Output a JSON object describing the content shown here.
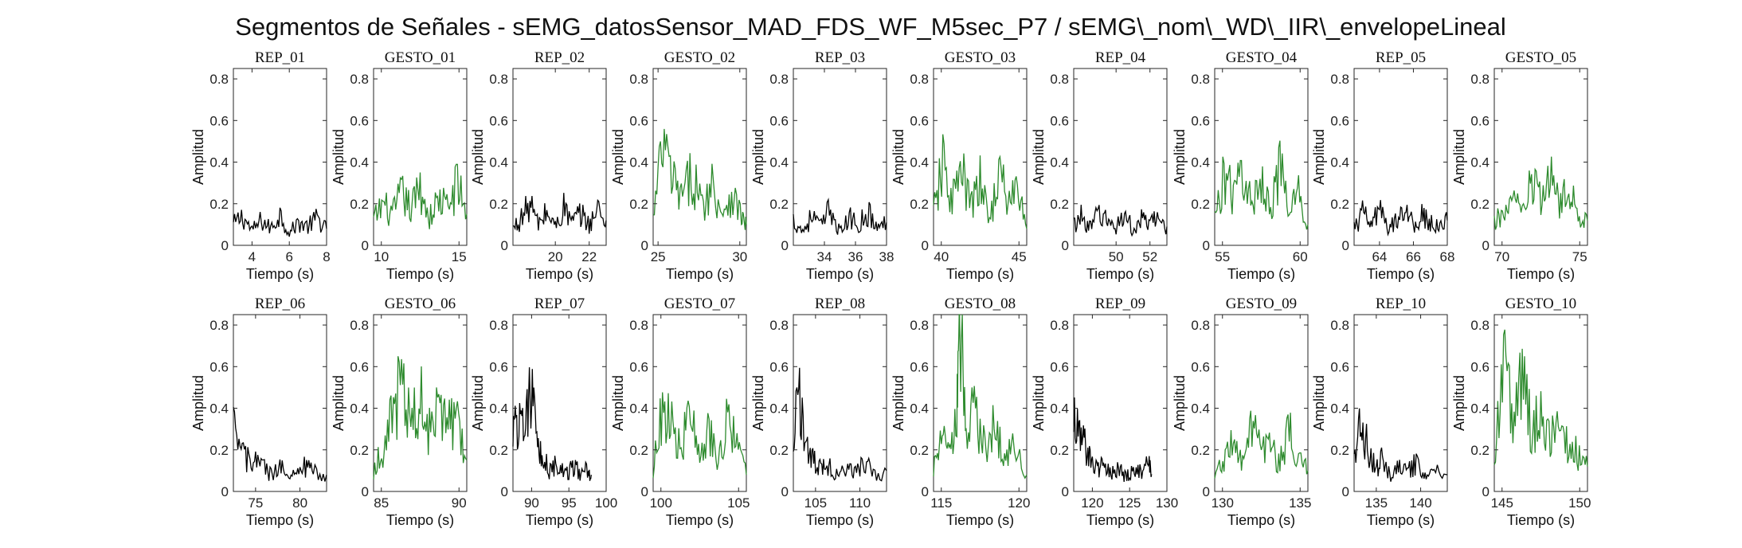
{
  "figure": {
    "title": "Segmentos de Señales - sEMG_datosSensor_MAD_FDS_WF_M5sec_P7 / sEMG\\_nom\\_WD\\_IIR\\_envelopeLineal"
  },
  "colors": {
    "rep": "#000000",
    "gesto": "#2e8b2e",
    "axis": "#262626"
  },
  "chart_data": [
    {
      "type": "line",
      "title": "REP_01",
      "xlabel": "Tiempo (s)",
      "ylabel": "Amplitud",
      "xlim": [
        3,
        8
      ],
      "ylim": [
        0,
        0.85
      ],
      "xticks": [
        4,
        6,
        8
      ],
      "yticks": [
        0,
        0.2,
        0.4,
        0.6,
        0.8
      ],
      "series": [
        {
          "color": "#000000",
          "x": [
            3,
            3.5,
            4,
            4.5,
            5,
            5.5,
            6,
            6.5,
            7,
            7.5,
            8
          ],
          "y": [
            0.1,
            0.14,
            0.07,
            0.12,
            0.08,
            0.15,
            0.06,
            0.11,
            0.09,
            0.13,
            0.08
          ]
        }
      ]
    },
    {
      "type": "line",
      "title": "GESTO_01",
      "xlabel": "Tiempo (s)",
      "ylabel": "Amplitud",
      "xlim": [
        9.5,
        15.5
      ],
      "ylim": [
        0,
        0.85
      ],
      "xticks": [
        10,
        15
      ],
      "yticks": [
        0,
        0.2,
        0.4,
        0.6,
        0.8
      ],
      "series": [
        {
          "color": "#2e8b2e",
          "x": [
            9.5,
            10.1,
            10.7,
            11.3,
            11.9,
            12.5,
            13.1,
            13.7,
            14.3,
            14.9,
            15.5
          ],
          "y": [
            0.12,
            0.2,
            0.14,
            0.25,
            0.17,
            0.28,
            0.13,
            0.22,
            0.18,
            0.3,
            0.15
          ]
        }
      ]
    },
    {
      "type": "line",
      "title": "REP_02",
      "xlabel": "Tiempo (s)",
      "ylabel": "Amplitud",
      "xlim": [
        17.5,
        23
      ],
      "ylim": [
        0,
        0.85
      ],
      "xticks": [
        20,
        22
      ],
      "yticks": [
        0,
        0.2,
        0.4,
        0.6,
        0.8
      ],
      "series": [
        {
          "color": "#000000",
          "x": [
            17.5,
            18,
            18.5,
            19,
            19.5,
            20,
            20.5,
            21,
            21.5,
            22,
            22.5,
            23
          ],
          "y": [
            0.08,
            0.13,
            0.2,
            0.1,
            0.16,
            0.09,
            0.18,
            0.11,
            0.15,
            0.1,
            0.17,
            0.12
          ]
        }
      ]
    },
    {
      "type": "line",
      "title": "GESTO_02",
      "xlabel": "Tiempo (s)",
      "ylabel": "Amplitud",
      "xlim": [
        24.7,
        30.4
      ],
      "ylim": [
        0,
        0.85
      ],
      "xticks": [
        25,
        30
      ],
      "yticks": [
        0,
        0.2,
        0.4,
        0.6,
        0.8
      ],
      "series": [
        {
          "color": "#2e8b2e",
          "x": [
            24.7,
            25.3,
            25.9,
            26.5,
            27.1,
            27.7,
            28.3,
            28.9,
            29.5,
            30.1,
            30.4
          ],
          "y": [
            0.12,
            0.48,
            0.3,
            0.22,
            0.35,
            0.18,
            0.3,
            0.16,
            0.25,
            0.14,
            0.1
          ]
        }
      ]
    },
    {
      "type": "line",
      "title": "REP_03",
      "xlabel": "Tiempo (s)",
      "ylabel": "Amplitud",
      "xlim": [
        32,
        38
      ],
      "ylim": [
        0,
        0.85
      ],
      "xticks": [
        34,
        36,
        38
      ],
      "yticks": [
        0,
        0.2,
        0.4,
        0.6,
        0.8
      ],
      "series": [
        {
          "color": "#000000",
          "x": [
            32,
            32.6,
            33.2,
            33.8,
            34.4,
            35,
            35.6,
            36.2,
            36.8,
            37.4,
            38
          ],
          "y": [
            0.12,
            0.07,
            0.14,
            0.09,
            0.18,
            0.06,
            0.13,
            0.1,
            0.16,
            0.08,
            0.11
          ]
        }
      ]
    },
    {
      "type": "line",
      "title": "GESTO_03",
      "xlabel": "Tiempo (s)",
      "ylabel": "Amplitud",
      "xlim": [
        39.5,
        45.5
      ],
      "ylim": [
        0,
        0.85
      ],
      "xticks": [
        40,
        45
      ],
      "yticks": [
        0,
        0.2,
        0.4,
        0.6,
        0.8
      ],
      "series": [
        {
          "color": "#2e8b2e",
          "x": [
            39.5,
            40.1,
            40.7,
            41.3,
            41.9,
            42.5,
            43.1,
            43.7,
            44.3,
            44.9,
            45.5
          ],
          "y": [
            0.15,
            0.38,
            0.22,
            0.35,
            0.18,
            0.3,
            0.12,
            0.35,
            0.2,
            0.28,
            0.08
          ]
        }
      ]
    },
    {
      "type": "line",
      "title": "REP_04",
      "xlabel": "Tiempo (s)",
      "ylabel": "Amplitud",
      "xlim": [
        47.5,
        53
      ],
      "ylim": [
        0,
        0.85
      ],
      "xticks": [
        50,
        52
      ],
      "yticks": [
        0,
        0.2,
        0.4,
        0.6,
        0.8
      ],
      "series": [
        {
          "color": "#000000",
          "x": [
            47.5,
            48,
            48.5,
            49,
            49.5,
            50,
            50.5,
            51,
            51.5,
            52,
            52.5,
            53
          ],
          "y": [
            0.1,
            0.14,
            0.08,
            0.16,
            0.11,
            0.09,
            0.15,
            0.07,
            0.12,
            0.1,
            0.13,
            0.09
          ]
        }
      ]
    },
    {
      "type": "line",
      "title": "GESTO_04",
      "xlabel": "Tiempo (s)",
      "ylabel": "Amplitud",
      "xlim": [
        54.5,
        60.5
      ],
      "ylim": [
        0,
        0.85
      ],
      "xticks": [
        55,
        60
      ],
      "yticks": [
        0,
        0.2,
        0.4,
        0.6,
        0.8
      ],
      "series": [
        {
          "color": "#2e8b2e",
          "x": [
            54.5,
            55.1,
            55.7,
            56.3,
            56.9,
            57.5,
            58.1,
            58.7,
            59.3,
            59.9,
            60.5
          ],
          "y": [
            0.12,
            0.35,
            0.22,
            0.38,
            0.17,
            0.32,
            0.2,
            0.36,
            0.15,
            0.25,
            0.1
          ]
        }
      ]
    },
    {
      "type": "line",
      "title": "REP_05",
      "xlabel": "Tiempo (s)",
      "ylabel": "Amplitud",
      "xlim": [
        62.5,
        68
      ],
      "ylim": [
        0,
        0.85
      ],
      "xticks": [
        64,
        66,
        68
      ],
      "yticks": [
        0,
        0.2,
        0.4,
        0.6,
        0.8
      ],
      "series": [
        {
          "color": "#000000",
          "x": [
            62.5,
            63,
            63.5,
            64,
            64.5,
            65,
            65.5,
            66,
            66.5,
            67,
            67.5,
            68
          ],
          "y": [
            0.08,
            0.15,
            0.1,
            0.17,
            0.07,
            0.13,
            0.19,
            0.09,
            0.14,
            0.11,
            0.08,
            0.12
          ]
        }
      ]
    },
    {
      "type": "line",
      "title": "GESTO_05",
      "xlabel": "Tiempo (s)",
      "ylabel": "Amplitud",
      "xlim": [
        69.5,
        75.5
      ],
      "ylim": [
        0,
        0.85
      ],
      "xticks": [
        70,
        75
      ],
      "yticks": [
        0,
        0.2,
        0.4,
        0.6,
        0.8
      ],
      "series": [
        {
          "color": "#2e8b2e",
          "x": [
            69.5,
            70.1,
            70.7,
            71.3,
            71.9,
            72.5,
            73.1,
            73.7,
            74.3,
            74.9,
            75.5
          ],
          "y": [
            0.1,
            0.16,
            0.22,
            0.14,
            0.3,
            0.2,
            0.38,
            0.18,
            0.26,
            0.15,
            0.12
          ]
        }
      ]
    },
    {
      "type": "line",
      "title": "REP_06",
      "xlabel": "Tiempo (s)",
      "ylabel": "Amplitud",
      "xlim": [
        72.5,
        83
      ],
      "ylim": [
        0,
        0.85
      ],
      "xticks": [
        75,
        80
      ],
      "yticks": [
        0,
        0.2,
        0.4,
        0.6,
        0.8
      ],
      "series": [
        {
          "color": "#000000",
          "x": [
            72.5,
            73.5,
            74.5,
            75.5,
            76.5,
            77.5,
            78.5,
            79.5,
            80.5,
            81.5,
            83
          ],
          "y": [
            0.28,
            0.2,
            0.12,
            0.15,
            0.08,
            0.1,
            0.13,
            0.07,
            0.12,
            0.09,
            0.08
          ]
        }
      ]
    },
    {
      "type": "line",
      "title": "GESTO_06",
      "xlabel": "Tiempo (s)",
      "ylabel": "Amplitud",
      "xlim": [
        84.5,
        90.5
      ],
      "ylim": [
        0,
        0.85
      ],
      "xticks": [
        85,
        90
      ],
      "yticks": [
        0,
        0.2,
        0.4,
        0.6,
        0.8
      ],
      "series": [
        {
          "color": "#2e8b2e",
          "x": [
            84.5,
            85.1,
            85.7,
            86.3,
            86.9,
            87.5,
            88.1,
            88.7,
            89.3,
            89.9,
            90.5
          ],
          "y": [
            0.1,
            0.2,
            0.35,
            0.55,
            0.3,
            0.45,
            0.28,
            0.5,
            0.32,
            0.4,
            0.15
          ]
        }
      ]
    },
    {
      "type": "line",
      "title": "REP_07",
      "xlabel": "Tiempo (s)",
      "ylabel": "Amplitud",
      "xlim": [
        87.5,
        100
      ],
      "ylim": [
        0,
        0.85
      ],
      "xticks": [
        90,
        95,
        100
      ],
      "yticks": [
        0,
        0.2,
        0.4,
        0.6,
        0.8
      ],
      "series": [
        {
          "color": "#000000",
          "x": [
            87.5,
            88.3,
            89.1,
            89.9,
            90.7,
            91.5,
            92.5,
            93.5,
            94.5,
            95.5,
            96.5,
            97.5,
            98
          ],
          "y": [
            0.35,
            0.3,
            0.4,
            0.5,
            0.2,
            0.15,
            0.1,
            0.14,
            0.08,
            0.12,
            0.09,
            0.11,
            0.08
          ]
        }
      ]
    },
    {
      "type": "line",
      "title": "GESTO_07",
      "xlabel": "Tiempo (s)",
      "ylabel": "Amplitud",
      "xlim": [
        99.5,
        105.5
      ],
      "ylim": [
        0,
        0.85
      ],
      "xticks": [
        100,
        105
      ],
      "yticks": [
        0,
        0.2,
        0.4,
        0.6,
        0.8
      ],
      "series": [
        {
          "color": "#2e8b2e",
          "x": [
            99.5,
            100.1,
            100.7,
            101.3,
            101.9,
            102.5,
            103.1,
            103.7,
            104.3,
            104.9,
            105.5
          ],
          "y": [
            0.1,
            0.4,
            0.3,
            0.22,
            0.35,
            0.15,
            0.28,
            0.12,
            0.42,
            0.2,
            0.08
          ]
        }
      ]
    },
    {
      "type": "line",
      "title": "REP_08",
      "xlabel": "Tiempo (s)",
      "ylabel": "Amplitud",
      "xlim": [
        102.5,
        113
      ],
      "ylim": [
        0,
        0.85
      ],
      "xticks": [
        105,
        110
      ],
      "yticks": [
        0,
        0.2,
        0.4,
        0.6,
        0.8
      ],
      "series": [
        {
          "color": "#000000",
          "x": [
            102.5,
            103.3,
            104.1,
            104.9,
            105.7,
            106.5,
            107.5,
            108.5,
            109.5,
            110.5,
            111.5,
            113
          ],
          "y": [
            0.28,
            0.45,
            0.2,
            0.15,
            0.1,
            0.13,
            0.07,
            0.12,
            0.09,
            0.14,
            0.08,
            0.1
          ]
        }
      ]
    },
    {
      "type": "line",
      "title": "GESTO_08",
      "xlabel": "Tiempo (s)",
      "ylabel": "Amplitud",
      "xlim": [
        114.5,
        120.5
      ],
      "ylim": [
        0,
        0.85
      ],
      "xticks": [
        115,
        120
      ],
      "yticks": [
        0,
        0.2,
        0.4,
        0.6,
        0.8
      ],
      "series": [
        {
          "color": "#2e8b2e",
          "x": [
            114.5,
            115,
            115.5,
            116,
            116.2,
            116.6,
            117.2,
            117.8,
            118.4,
            119,
            119.6,
            120.5
          ],
          "y": [
            0.1,
            0.25,
            0.18,
            0.35,
            0.85,
            0.3,
            0.38,
            0.2,
            0.34,
            0.15,
            0.22,
            0.08
          ]
        }
      ]
    },
    {
      "type": "line",
      "title": "REP_09",
      "xlabel": "Tiempo (s)",
      "ylabel": "Amplitud",
      "xlim": [
        117.5,
        130
      ],
      "ylim": [
        0,
        0.85
      ],
      "xticks": [
        120,
        125,
        130
      ],
      "yticks": [
        0,
        0.2,
        0.4,
        0.6,
        0.8
      ],
      "series": [
        {
          "color": "#000000",
          "x": [
            117.5,
            118.3,
            119.1,
            119.9,
            120.7,
            121.5,
            122.5,
            123.5,
            124.5,
            125.5,
            126.5,
            127.5,
            128
          ],
          "y": [
            0.38,
            0.28,
            0.2,
            0.14,
            0.1,
            0.13,
            0.08,
            0.11,
            0.07,
            0.12,
            0.09,
            0.13,
            0.08
          ]
        }
      ]
    },
    {
      "type": "line",
      "title": "GESTO_09",
      "xlabel": "Tiempo (s)",
      "ylabel": "Amplitud",
      "xlim": [
        129.5,
        135.5
      ],
      "ylim": [
        0,
        0.85
      ],
      "xticks": [
        130,
        135
      ],
      "yticks": [
        0,
        0.2,
        0.4,
        0.6,
        0.8
      ],
      "series": [
        {
          "color": "#2e8b2e",
          "x": [
            129.5,
            130.1,
            130.7,
            131.3,
            131.9,
            132.5,
            133.1,
            133.7,
            134.3,
            134.9,
            135.5
          ],
          "y": [
            0.08,
            0.15,
            0.25,
            0.12,
            0.3,
            0.18,
            0.22,
            0.14,
            0.28,
            0.16,
            0.1
          ]
        }
      ]
    },
    {
      "type": "line",
      "title": "REP_10",
      "xlabel": "Tiempo (s)",
      "ylabel": "Amplitud",
      "xlim": [
        132.5,
        143
      ],
      "ylim": [
        0,
        0.85
      ],
      "xticks": [
        135,
        140
      ],
      "yticks": [
        0,
        0.2,
        0.4,
        0.6,
        0.8
      ],
      "series": [
        {
          "color": "#000000",
          "x": [
            132.5,
            133.3,
            134.1,
            134.9,
            135.7,
            136.5,
            137.5,
            138.5,
            139.5,
            140.5,
            141.5,
            143
          ],
          "y": [
            0.22,
            0.3,
            0.2,
            0.12,
            0.15,
            0.08,
            0.12,
            0.09,
            0.14,
            0.07,
            0.1,
            0.08
          ]
        }
      ]
    },
    {
      "type": "line",
      "title": "GESTO_10",
      "xlabel": "Tiempo (s)",
      "ylabel": "Amplitud",
      "xlim": [
        144.5,
        150.5
      ],
      "ylim": [
        0,
        0.85
      ],
      "xticks": [
        145,
        150
      ],
      "yticks": [
        0,
        0.2,
        0.4,
        0.6,
        0.8
      ],
      "series": [
        {
          "color": "#2e8b2e",
          "x": [
            144.5,
            145.1,
            145.7,
            146.3,
            146.9,
            147.5,
            148.1,
            148.7,
            149.3,
            149.9,
            150.5
          ],
          "y": [
            0.15,
            0.6,
            0.35,
            0.55,
            0.3,
            0.4,
            0.25,
            0.32,
            0.2,
            0.18,
            0.12
          ]
        }
      ]
    }
  ]
}
